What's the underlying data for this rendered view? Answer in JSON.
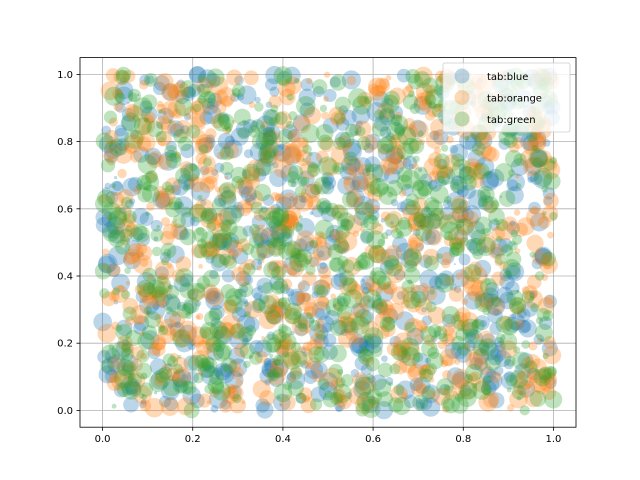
{
  "chart_data": {
    "type": "scatter",
    "title": "",
    "xlabel": "",
    "ylabel": "",
    "xlim": [
      -0.05,
      1.05
    ],
    "ylim": [
      -0.05,
      1.05
    ],
    "x_ticks": [
      "0.0",
      "0.2",
      "0.4",
      "0.6",
      "0.8",
      "1.0"
    ],
    "y_ticks": [
      "0.0",
      "0.2",
      "0.4",
      "0.6",
      "0.8",
      "1.0"
    ],
    "grid": true,
    "legend_position": "top-right",
    "marker_alpha": 0.3,
    "distribution": "uniform random x, y in [0, 1], random marker sizes",
    "series": [
      {
        "name": "tab:blue",
        "color": "#1f77b4",
        "n_points": 750
      },
      {
        "name": "tab:orange",
        "color": "#ff7f0e",
        "n_points": 750
      },
      {
        "name": "tab:green",
        "color": "#2ca02c",
        "n_points": 750
      }
    ]
  }
}
